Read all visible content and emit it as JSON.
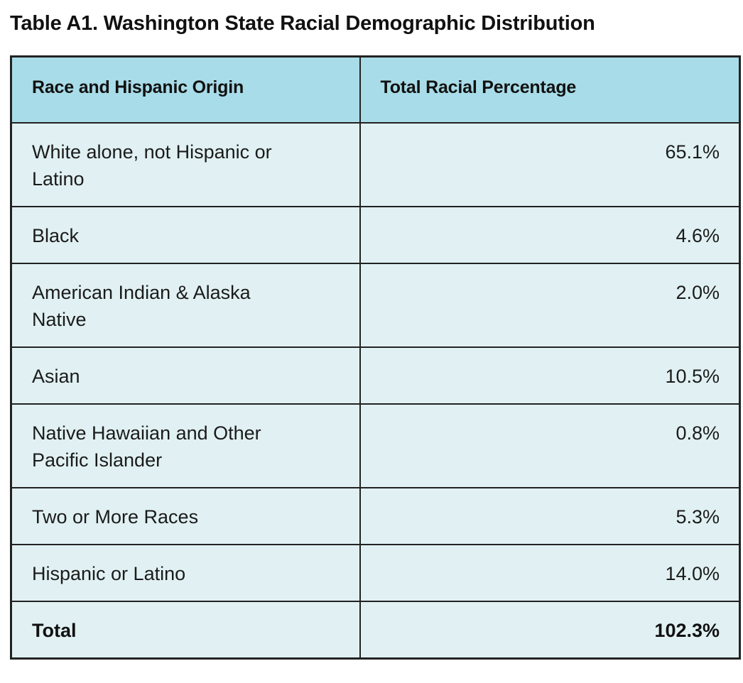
{
  "title": "Table A1. Washington State Racial Demographic Distribution",
  "table": {
    "columns": [
      "Race and Hispanic Origin",
      "Total Racial Percentage"
    ],
    "rows": [
      {
        "label": "White alone, not Hispanic or Latino",
        "value": "65.1%"
      },
      {
        "label": "Black",
        "value": "4.6%"
      },
      {
        "label": "American Indian & Alaska Native",
        "value": "2.0%"
      },
      {
        "label": "Asian",
        "value": "10.5%"
      },
      {
        "label": "Native Hawaiian and Other Pacific Islander",
        "value": "0.8%"
      },
      {
        "label": "Two or More Races",
        "value": "5.3%"
      },
      {
        "label": "Hispanic or Latino",
        "value": "14.0%"
      }
    ],
    "total_row": {
      "label": "Total",
      "value": "102.3%"
    }
  },
  "colors": {
    "header_bg": "#a8dce8",
    "row_bg": "#e1f1f3",
    "border": "#222222",
    "text": "#1b1b1b"
  },
  "chart_data": {
    "type": "table",
    "title": "Table A1. Washington State Racial Demographic Distribution",
    "columns": [
      "Race and Hispanic Origin",
      "Total Racial Percentage"
    ],
    "categories": [
      "White alone, not Hispanic or Latino",
      "Black",
      "American Indian & Alaska Native",
      "Asian",
      "Native Hawaiian and Other Pacific Islander",
      "Two or More Races",
      "Hispanic or Latino"
    ],
    "values": [
      65.1,
      4.6,
      2.0,
      10.5,
      0.8,
      5.3,
      14.0
    ],
    "total": 102.3,
    "unit": "%"
  }
}
